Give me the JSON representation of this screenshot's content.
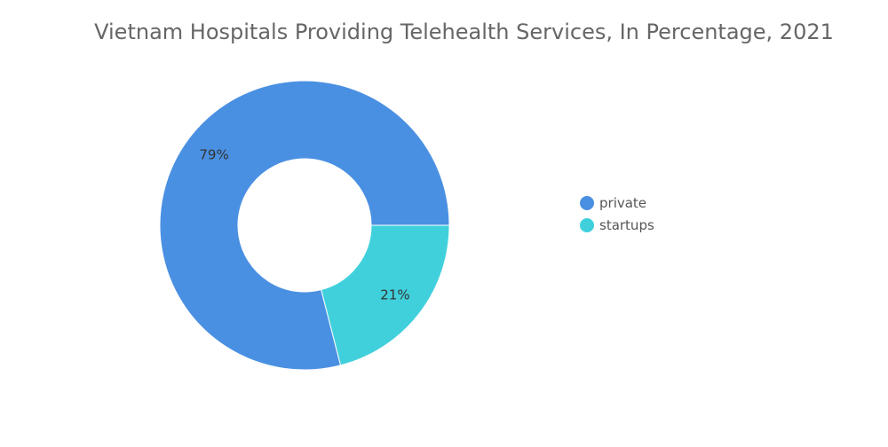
{
  "chart_data": {
    "type": "pie",
    "title": "Vietnam Hospitals Providing Telehealth Services, In Percentage, 2021",
    "donut": true,
    "legend_position": "right",
    "categories": [
      "private",
      "startups"
    ],
    "values": [
      79,
      21
    ],
    "unit": "%",
    "data_labels": [
      "79%",
      "21%"
    ],
    "colors": [
      "#4a90e2",
      "#40d0dc"
    ]
  }
}
